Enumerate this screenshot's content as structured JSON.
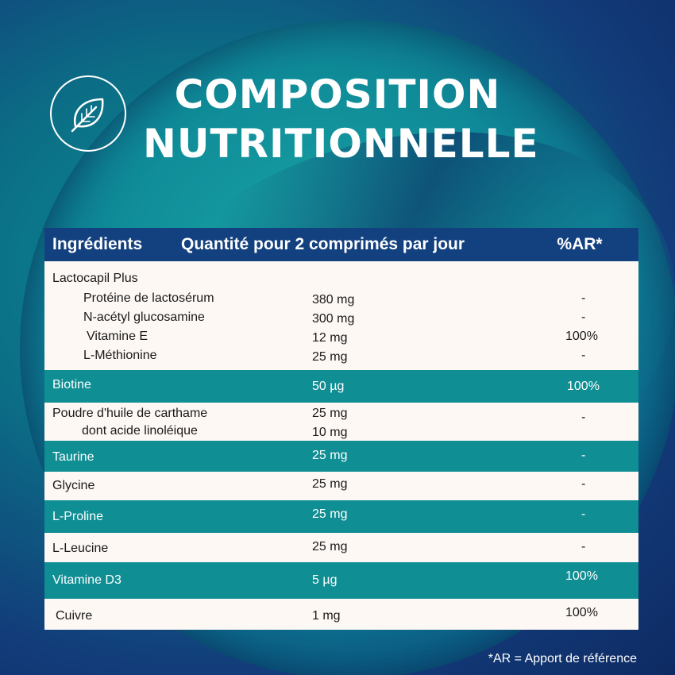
{
  "title": {
    "line1": "COMPOSITION",
    "line2": "NUTRITIONNELLE"
  },
  "badge_icon": "leaf-icon",
  "colors": {
    "header": "#13407f",
    "dark_row": "#0f8e94",
    "light_row": "#fdf8f4"
  },
  "table": {
    "headers": [
      "Ingrédients",
      "Quantité pour 2 comprimés par jour",
      "%AR*"
    ],
    "lactocapil": {
      "name": "Lactocapil Plus",
      "items": [
        {
          "name": "Protéine de lactosérum",
          "qty": "380 mg",
          "ar": "-"
        },
        {
          "name": "N-acétyl glucosamine",
          "qty": "300 mg",
          "ar": "-"
        },
        {
          "name": "Vitamine E",
          "qty": "12 mg",
          "ar": "100%"
        },
        {
          "name": "L-Méthionine",
          "qty": "25 mg",
          "ar": "-"
        }
      ]
    },
    "biotine": {
      "name": "Biotine",
      "qty": "50 µg",
      "ar": "100%"
    },
    "carthame": {
      "name": "Poudre d'huile de carthame",
      "qty": "25 mg",
      "ar": "-",
      "sub_name": "dont acide linoléique",
      "sub_qty": "10 mg"
    },
    "taurine": {
      "name": "Taurine",
      "qty": "25 mg",
      "ar": "-"
    },
    "glycine": {
      "name": "Glycine",
      "qty": "25 mg",
      "ar": "-"
    },
    "proline": {
      "name": "L-Proline",
      "qty": "25 mg",
      "ar": "-"
    },
    "leucine": {
      "name": "L-Leucine",
      "qty": "25 mg",
      "ar": "-"
    },
    "vitd3": {
      "name": "Vitamine D3",
      "qty": "5 µg",
      "ar": "100%"
    },
    "cuivre": {
      "name": "Cuivre",
      "qty": "1 mg",
      "ar": "100%"
    }
  },
  "footnote": "*AR = Apport de référence"
}
